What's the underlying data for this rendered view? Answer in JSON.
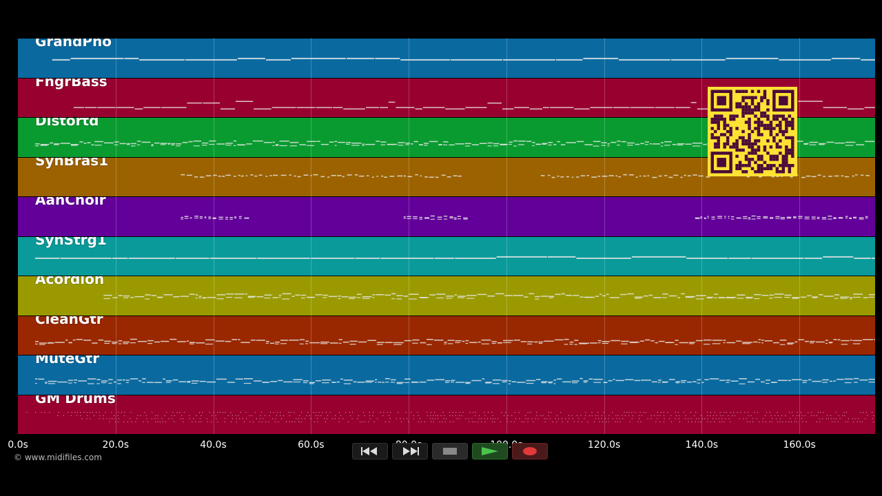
{
  "tracks": [
    {
      "name": "GrandPno",
      "color": "#0a6aa0",
      "pattern": "line",
      "y": 0.52,
      "start": 0.04
    },
    {
      "name": "FngrBass",
      "color": "#980030",
      "pattern": "bass",
      "y": 0.72,
      "start": 0.065
    },
    {
      "name": "Distortd",
      "color": "#0a9b30",
      "pattern": "dense",
      "y": 0.62,
      "start": 0.02
    },
    {
      "name": "SynBras1",
      "color": "#9c6200",
      "pattern": "sparse",
      "y": 0.45,
      "start": 0.19
    },
    {
      "name": "AahChoir",
      "color": "#620099",
      "pattern": "clusters",
      "y": 0.5,
      "start": 0.19
    },
    {
      "name": "SynStrg1",
      "color": "#0a9a9a",
      "pattern": "line",
      "y": 0.52,
      "start": 0.02
    },
    {
      "name": "Acordion",
      "color": "#9a9a00",
      "pattern": "dense",
      "y": 0.48,
      "start": 0.1
    },
    {
      "name": "CleanGtr",
      "color": "#992800",
      "pattern": "dense",
      "y": 0.62,
      "start": 0.02
    },
    {
      "name": "MuteGtr",
      "color": "#0a6aa0",
      "pattern": "dense",
      "y": 0.62,
      "start": 0.02
    },
    {
      "name": "GM Drums",
      "color": "#980030",
      "pattern": "drums",
      "y": 0.5,
      "start": 0.01
    }
  ],
  "axis": {
    "ticks": [
      "0.0s",
      "20.0s",
      "40.0s",
      "60.0s",
      "80.0s",
      "100.0s",
      "120.0s",
      "140.0s",
      "160.0s"
    ],
    "tick_values": [
      0,
      20,
      40,
      60,
      80,
      100,
      120,
      140,
      160
    ],
    "max_seconds": 175.5
  },
  "copyright": "© www.midifiles.com",
  "transport": {
    "rewind_icon": "rewind-icon",
    "ffwd_icon": "fast-forward-icon",
    "stop_icon": "stop-icon",
    "play_icon": "play-icon",
    "record_icon": "record-icon"
  },
  "colors": {
    "qr_bg": "#ffe234",
    "qr_fg": "#4a0a3a"
  }
}
